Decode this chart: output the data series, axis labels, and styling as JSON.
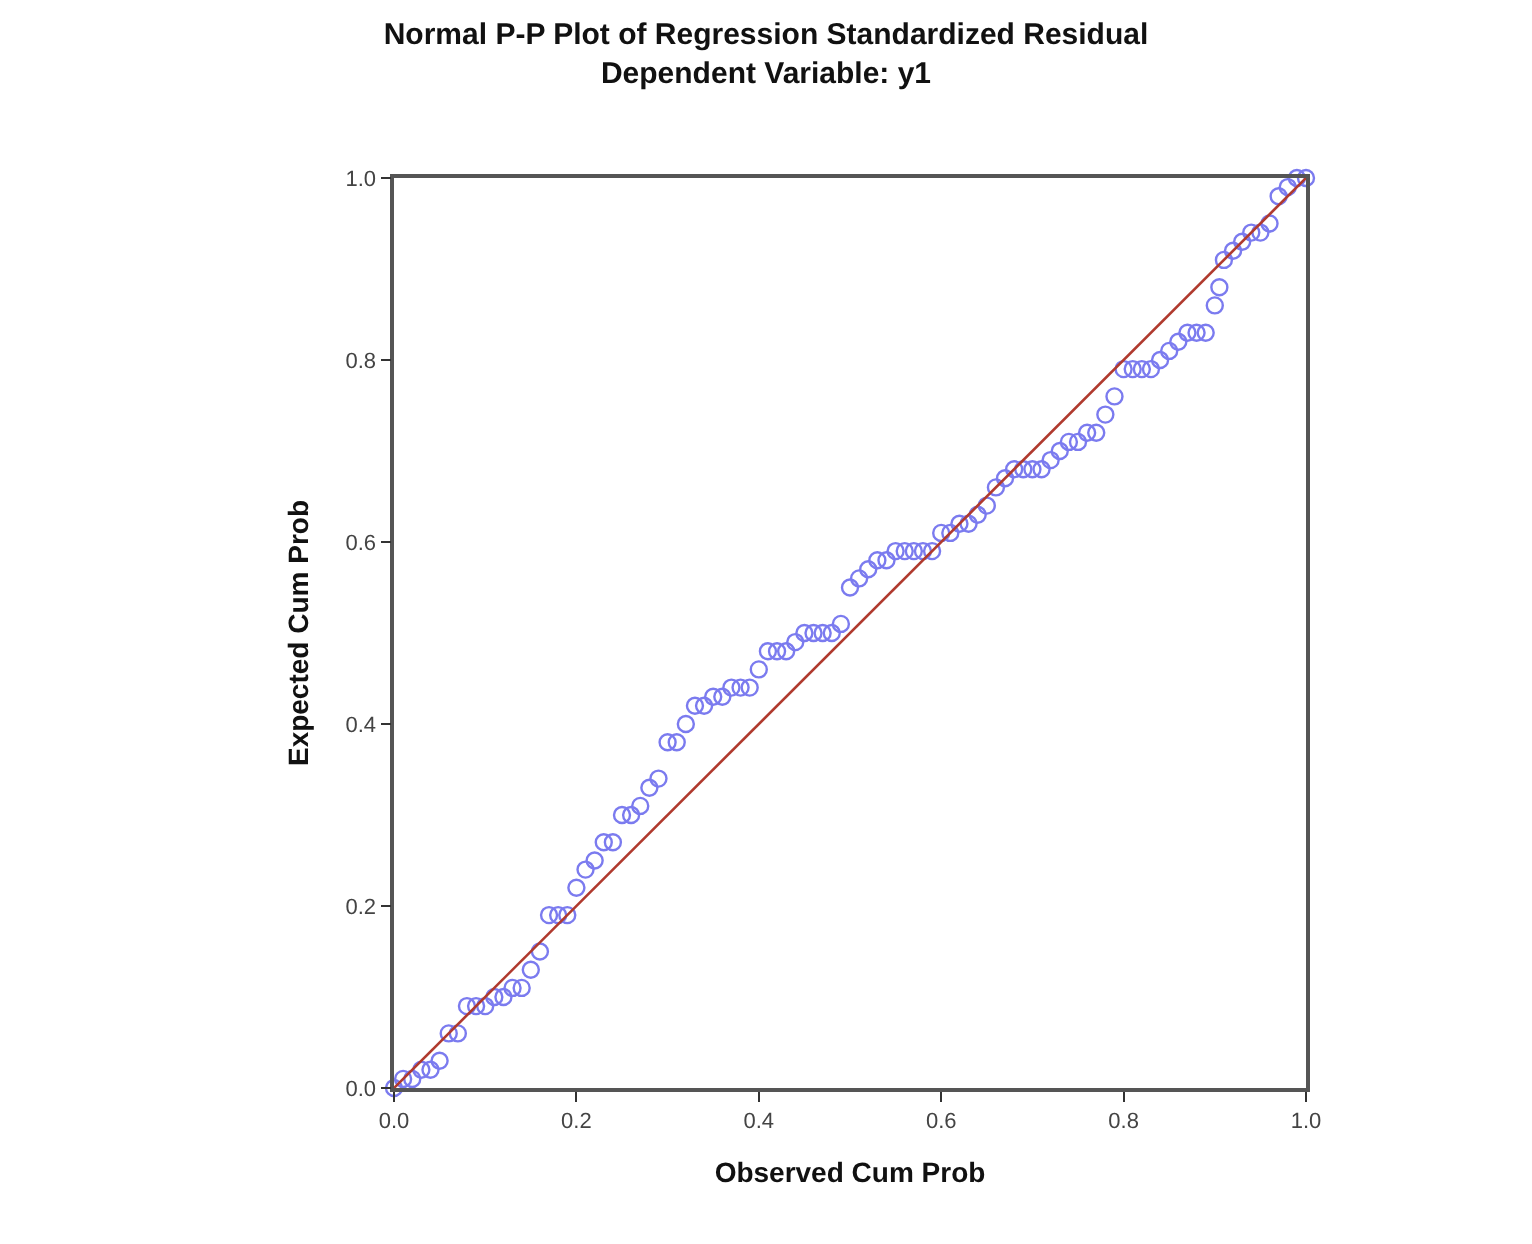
{
  "chart_data": {
    "type": "scatter",
    "title": "Normal P-P Plot of Regression Standardized Residual",
    "subtitle": "Dependent Variable: y1",
    "xlabel": "Observed Cum Prob",
    "ylabel": "Expected Cum Prob",
    "xlim": [
      0,
      1
    ],
    "ylim": [
      0,
      1
    ],
    "xticks": [
      {
        "value": 0,
        "label": "0.0"
      },
      0.2,
      0.4,
      0.6,
      0.8,
      {
        "value": 1,
        "label": "1.0"
      }
    ],
    "yticks": [
      {
        "value": 0,
        "label": "0.0"
      },
      0.2,
      0.4,
      0.6,
      0.8,
      {
        "value": 1,
        "label": "1.0"
      }
    ],
    "series": [
      {
        "marker": "circle",
        "color": "#7b7bef",
        "x": [
          0.0,
          0.01,
          0.02,
          0.03,
          0.04,
          0.05,
          0.06,
          0.07,
          0.08,
          0.09,
          0.1,
          0.11,
          0.12,
          0.13,
          0.14,
          0.15,
          0.16,
          0.17,
          0.18,
          0.19,
          0.2,
          0.21,
          0.22,
          0.23,
          0.24,
          0.25,
          0.26,
          0.27,
          0.28,
          0.29,
          0.3,
          0.31,
          0.32,
          0.33,
          0.34,
          0.35,
          0.36,
          0.37,
          0.38,
          0.39,
          0.4,
          0.41,
          0.42,
          0.43,
          0.44,
          0.45,
          0.46,
          0.47,
          0.48,
          0.49,
          0.5,
          0.51,
          0.52,
          0.53,
          0.54,
          0.55,
          0.56,
          0.57,
          0.58,
          0.59,
          0.6,
          0.61,
          0.62,
          0.63,
          0.64,
          0.65,
          0.66,
          0.67,
          0.68,
          0.69,
          0.7,
          0.71,
          0.72,
          0.73,
          0.74,
          0.75,
          0.76,
          0.77,
          0.78,
          0.79,
          0.8,
          0.81,
          0.82,
          0.83,
          0.84,
          0.85,
          0.86,
          0.87,
          0.88,
          0.89,
          0.9,
          0.905,
          0.91,
          0.92,
          0.93,
          0.94,
          0.95,
          0.96,
          0.97,
          0.98,
          0.99,
          1.0
        ],
        "values": [
          0.0,
          0.01,
          0.01,
          0.02,
          0.02,
          0.03,
          0.06,
          0.06,
          0.09,
          0.09,
          0.09,
          0.1,
          0.1,
          0.11,
          0.11,
          0.13,
          0.15,
          0.19,
          0.19,
          0.19,
          0.22,
          0.24,
          0.25,
          0.27,
          0.27,
          0.3,
          0.3,
          0.31,
          0.33,
          0.34,
          0.38,
          0.38,
          0.4,
          0.42,
          0.42,
          0.43,
          0.43,
          0.44,
          0.44,
          0.44,
          0.46,
          0.48,
          0.48,
          0.48,
          0.49,
          0.5,
          0.5,
          0.5,
          0.5,
          0.51,
          0.55,
          0.56,
          0.57,
          0.58,
          0.58,
          0.59,
          0.59,
          0.59,
          0.59,
          0.59,
          0.61,
          0.61,
          0.62,
          0.62,
          0.63,
          0.64,
          0.66,
          0.67,
          0.68,
          0.68,
          0.68,
          0.68,
          0.69,
          0.7,
          0.71,
          0.71,
          0.72,
          0.72,
          0.74,
          0.76,
          0.79,
          0.79,
          0.79,
          0.79,
          0.8,
          0.81,
          0.82,
          0.83,
          0.83,
          0.83,
          0.86,
          0.88,
          0.91,
          0.92,
          0.93,
          0.94,
          0.94,
          0.95,
          0.98,
          0.99,
          1.0,
          1.0
        ]
      },
      {
        "type": "line",
        "color": "#b03a2e",
        "line_style": "solid",
        "marker": "none",
        "x": [
          0,
          1
        ],
        "values": [
          0,
          1
        ]
      }
    ]
  }
}
